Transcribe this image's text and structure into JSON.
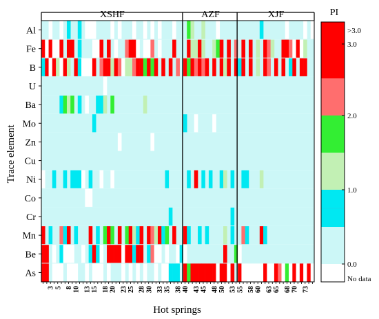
{
  "chart_data": {
    "type": "heatmap",
    "xlabel": "Hot springs",
    "ylabel": "Trace element",
    "rows": [
      "Al",
      "Fe",
      "B",
      "U",
      "Ba",
      "Mo",
      "Zn",
      "Cu",
      "Ni",
      "Co",
      "Cr",
      "Mn",
      "Be",
      "As"
    ],
    "x_tick_labels": [
      "3",
      "5",
      "8",
      "10",
      "13",
      "15",
      "18",
      "20",
      "23",
      "25",
      "28",
      "30",
      "33",
      "35",
      "38",
      "40",
      "43",
      "45",
      "48",
      "50",
      "53",
      "55",
      "58",
      "60",
      "63",
      "65",
      "68",
      "70",
      "73"
    ],
    "x_tick_values": [
      3,
      5,
      8,
      10,
      13,
      15,
      18,
      20,
      23,
      25,
      28,
      30,
      33,
      35,
      38,
      40,
      43,
      45,
      48,
      50,
      53,
      55,
      58,
      60,
      63,
      65,
      68,
      70,
      73
    ],
    "n_columns": 75,
    "groups": [
      {
        "label": "XSHF",
        "start": 1,
        "end": 39
      },
      {
        "label": "AZF",
        "start": 40,
        "end": 54
      },
      {
        "label": "XJF",
        "start": 55,
        "end": 75
      }
    ],
    "legend": {
      "title": "PI",
      "ticks": [
        ">3.0",
        "3.0",
        "2.0",
        "1.0",
        "0.0",
        "No data"
      ]
    },
    "color_classes": [
      {
        "level": -1,
        "range": "no data",
        "color": "#ffffff"
      },
      {
        "level": 0,
        "range": "0.0-0.5",
        "color": "#ccf7f7"
      },
      {
        "level": 1,
        "range": "0.5-1.0",
        "color": "#00e8f2"
      },
      {
        "level": 2,
        "range": "1.0-1.5",
        "color": "#c2f0b4"
      },
      {
        "level": 3,
        "range": "1.5-2.0",
        "color": "#33ee33"
      },
      {
        "level": 4,
        "range": "2.0-3.0",
        "color": "#ff6e6e"
      },
      {
        "level": 5,
        "range": ">3.0",
        "color": "#ff0000"
      }
    ],
    "cells": {
      "Al": [
        [
          3,
          -1
        ],
        [
          6,
          -1
        ],
        [
          8,
          1
        ],
        [
          11,
          1
        ],
        [
          13,
          -1
        ],
        [
          14,
          -1
        ],
        [
          15,
          -1
        ],
        [
          20,
          -1
        ],
        [
          22,
          -1
        ],
        [
          26,
          -1
        ],
        [
          29,
          -1
        ],
        [
          31,
          -1
        ],
        [
          33,
          -1
        ],
        [
          37,
          -1
        ],
        [
          41,
          3
        ],
        [
          42,
          2
        ],
        [
          45,
          2
        ],
        [
          49,
          -1
        ],
        [
          61,
          1
        ],
        [
          68,
          -1
        ],
        [
          73,
          -1
        ],
        [
          75,
          -1
        ]
      ],
      "Fe": [
        [
          1,
          5
        ],
        [
          2,
          -1
        ],
        [
          3,
          5
        ],
        [
          4,
          -1
        ],
        [
          5,
          -1
        ],
        [
          6,
          5
        ],
        [
          8,
          5
        ],
        [
          9,
          5
        ],
        [
          11,
          1
        ],
        [
          15,
          -1
        ],
        [
          16,
          -1
        ],
        [
          17,
          5
        ],
        [
          19,
          5
        ],
        [
          21,
          -1
        ],
        [
          24,
          4
        ],
        [
          25,
          5
        ],
        [
          26,
          5
        ],
        [
          27,
          -1
        ],
        [
          29,
          -1
        ],
        [
          30,
          -1
        ],
        [
          31,
          4
        ],
        [
          33,
          -1
        ],
        [
          37,
          5
        ],
        [
          41,
          5
        ],
        [
          42,
          2
        ],
        [
          43,
          2
        ],
        [
          44,
          5
        ],
        [
          45,
          2
        ],
        [
          48,
          2
        ],
        [
          49,
          3
        ],
        [
          50,
          5
        ],
        [
          52,
          5
        ],
        [
          54,
          4
        ],
        [
          56,
          5
        ],
        [
          58,
          5
        ],
        [
          60,
          2
        ],
        [
          62,
          5
        ],
        [
          63,
          4
        ],
        [
          64,
          2
        ],
        [
          67,
          5
        ],
        [
          68,
          5
        ],
        [
          69,
          4
        ],
        [
          70,
          -1
        ],
        [
          71,
          5
        ],
        [
          72,
          -1
        ],
        [
          73,
          2
        ]
      ],
      "B": [
        [
          1,
          1
        ],
        [
          2,
          5
        ],
        [
          3,
          -1
        ],
        [
          4,
          5
        ],
        [
          5,
          2
        ],
        [
          6,
          -1
        ],
        [
          7,
          5
        ],
        [
          8,
          2
        ],
        [
          10,
          5
        ],
        [
          11,
          1
        ],
        [
          12,
          -1
        ],
        [
          13,
          -1
        ],
        [
          14,
          -1
        ],
        [
          15,
          5
        ],
        [
          17,
          4
        ],
        [
          18,
          5
        ],
        [
          19,
          5
        ],
        [
          20,
          2
        ],
        [
          21,
          5
        ],
        [
          22,
          4
        ],
        [
          23,
          -1
        ],
        [
          24,
          2
        ],
        [
          25,
          2
        ],
        [
          26,
          4
        ],
        [
          27,
          5
        ],
        [
          28,
          5
        ],
        [
          29,
          3
        ],
        [
          30,
          5
        ],
        [
          31,
          3
        ],
        [
          32,
          5
        ],
        [
          34,
          5
        ],
        [
          36,
          5
        ],
        [
          38,
          4
        ],
        [
          40,
          5
        ],
        [
          41,
          3
        ],
        [
          42,
          5
        ],
        [
          43,
          4
        ],
        [
          44,
          5
        ],
        [
          45,
          4
        ],
        [
          46,
          5
        ],
        [
          48,
          5
        ],
        [
          50,
          5
        ],
        [
          51,
          2
        ],
        [
          52,
          5
        ],
        [
          54,
          5
        ],
        [
          55,
          1
        ],
        [
          56,
          5
        ],
        [
          58,
          5
        ],
        [
          60,
          2
        ],
        [
          62,
          5
        ],
        [
          63,
          4
        ],
        [
          65,
          5
        ],
        [
          67,
          5
        ],
        [
          69,
          1
        ],
        [
          70,
          5
        ],
        [
          72,
          5
        ],
        [
          73,
          5
        ]
      ],
      "U": [
        [
          18,
          -1
        ]
      ],
      "Ba": [
        [
          6,
          1
        ],
        [
          7,
          3
        ],
        [
          8,
          2
        ],
        [
          9,
          3
        ],
        [
          11,
          1
        ],
        [
          13,
          -1
        ],
        [
          16,
          1
        ],
        [
          17,
          1
        ],
        [
          18,
          2
        ],
        [
          20,
          3
        ],
        [
          29,
          2
        ]
      ],
      "Mo": [
        [
          15,
          1
        ],
        [
          40,
          1
        ],
        [
          43,
          -1
        ],
        [
          48,
          -1
        ]
      ],
      "Zn": [
        [
          22,
          -1
        ],
        [
          31,
          -1
        ]
      ],
      "Cu": [],
      "Ni": [
        [
          1,
          -1
        ],
        [
          4,
          1
        ],
        [
          7,
          1
        ],
        [
          9,
          1
        ],
        [
          10,
          1
        ],
        [
          11,
          1
        ],
        [
          12,
          -1
        ],
        [
          14,
          1
        ],
        [
          17,
          -1
        ],
        [
          20,
          -1
        ],
        [
          35,
          1
        ],
        [
          41,
          1
        ],
        [
          43,
          5
        ],
        [
          45,
          1
        ],
        [
          47,
          1
        ],
        [
          50,
          1
        ],
        [
          51,
          2
        ],
        [
          53,
          1
        ],
        [
          56,
          1
        ],
        [
          57,
          1
        ],
        [
          61,
          2
        ]
      ],
      "Co": [
        [
          13,
          -1
        ],
        [
          14,
          -1
        ]
      ],
      "Cr": [
        [
          36,
          1
        ],
        [
          53,
          1
        ]
      ],
      "Mn": [
        [
          1,
          5
        ],
        [
          3,
          1
        ],
        [
          6,
          4
        ],
        [
          7,
          1
        ],
        [
          8,
          5
        ],
        [
          10,
          1
        ],
        [
          14,
          5
        ],
        [
          16,
          1
        ],
        [
          18,
          3
        ],
        [
          19,
          5
        ],
        [
          20,
          3
        ],
        [
          22,
          5
        ],
        [
          24,
          3
        ],
        [
          25,
          5
        ],
        [
          26,
          2
        ],
        [
          27,
          1
        ],
        [
          28,
          5
        ],
        [
          30,
          5
        ],
        [
          31,
          4
        ],
        [
          32,
          2
        ],
        [
          33,
          5
        ],
        [
          34,
          1
        ],
        [
          35,
          3
        ],
        [
          37,
          5
        ],
        [
          40,
          5
        ],
        [
          41,
          1
        ],
        [
          44,
          1
        ],
        [
          46,
          1
        ],
        [
          51,
          2
        ],
        [
          53,
          1
        ],
        [
          56,
          4
        ],
        [
          57,
          1
        ],
        [
          61,
          5
        ],
        [
          62,
          1
        ]
      ],
      "Be": [
        [
          1,
          5
        ],
        [
          2,
          5
        ],
        [
          4,
          -1
        ],
        [
          6,
          1
        ],
        [
          7,
          -1
        ],
        [
          8,
          -1
        ],
        [
          9,
          -1
        ],
        [
          12,
          -1
        ],
        [
          14,
          1
        ],
        [
          15,
          5
        ],
        [
          16,
          1
        ],
        [
          17,
          -1
        ],
        [
          19,
          5
        ],
        [
          20,
          5
        ],
        [
          21,
          5
        ],
        [
          22,
          5
        ],
        [
          23,
          -1
        ],
        [
          24,
          5
        ],
        [
          25,
          5
        ],
        [
          26,
          1
        ],
        [
          27,
          5
        ],
        [
          28,
          5
        ],
        [
          30,
          1
        ],
        [
          31,
          4
        ],
        [
          32,
          -1
        ],
        [
          33,
          -1
        ],
        [
          35,
          -1
        ],
        [
          38,
          -1
        ],
        [
          39,
          1
        ],
        [
          40,
          -1
        ],
        [
          51,
          5
        ],
        [
          54,
          3
        ],
        [
          55,
          -1
        ]
      ],
      "As": [
        [
          1,
          5
        ],
        [
          2,
          5
        ],
        [
          4,
          -1
        ],
        [
          5,
          -1
        ],
        [
          6,
          -1
        ],
        [
          8,
          -1
        ],
        [
          9,
          -1
        ],
        [
          10,
          -1
        ],
        [
          13,
          -1
        ],
        [
          15,
          -1
        ],
        [
          16,
          -1
        ],
        [
          17,
          -1
        ],
        [
          19,
          -1
        ],
        [
          23,
          -1
        ],
        [
          25,
          -1
        ],
        [
          27,
          -1
        ],
        [
          29,
          -1
        ],
        [
          32,
          -1
        ],
        [
          34,
          -1
        ],
        [
          35,
          -1
        ],
        [
          36,
          1
        ],
        [
          37,
          1
        ],
        [
          38,
          1
        ],
        [
          40,
          5
        ],
        [
          41,
          3
        ],
        [
          42,
          5
        ],
        [
          43,
          5
        ],
        [
          44,
          5
        ],
        [
          45,
          5
        ],
        [
          46,
          5
        ],
        [
          47,
          5
        ],
        [
          48,
          5
        ],
        [
          49,
          -1
        ],
        [
          50,
          5
        ],
        [
          51,
          5
        ],
        [
          52,
          -1
        ],
        [
          53,
          5
        ],
        [
          55,
          5
        ],
        [
          56,
          -1
        ],
        [
          57,
          -1
        ],
        [
          58,
          -1
        ],
        [
          59,
          -1
        ],
        [
          60,
          -1
        ],
        [
          61,
          -1
        ],
        [
          62,
          5
        ],
        [
          63,
          -1
        ],
        [
          64,
          -1
        ],
        [
          65,
          5
        ],
        [
          66,
          4
        ],
        [
          67,
          -1
        ],
        [
          68,
          3
        ],
        [
          69,
          -1
        ],
        [
          70,
          5
        ],
        [
          71,
          -1
        ],
        [
          72,
          5
        ],
        [
          73,
          -1
        ],
        [
          74,
          5
        ],
        [
          75,
          -1
        ]
      ]
    }
  }
}
